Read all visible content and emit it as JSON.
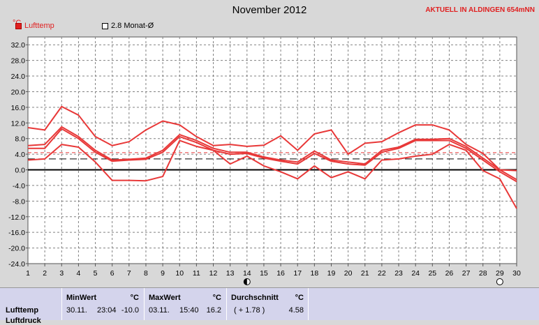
{
  "header": {
    "title": "November 2012",
    "station": "AKTUELL IN ALDINGEN 654mNN",
    "unit": "°C"
  },
  "legend": [
    {
      "label": "Lufttemp",
      "color": "#e02020"
    },
    {
      "label": "2.8 Monat-Ø",
      "color": "#000000"
    }
  ],
  "colors": {
    "series": "#e83838",
    "grid": "#808080",
    "plot_bg": "#ffffff",
    "frame_bg": "#d8d8d8"
  },
  "chart_data": {
    "type": "line",
    "title": "November 2012",
    "ylim": [
      -24,
      34
    ],
    "yticks": [
      32.0,
      28.0,
      24.0,
      20.0,
      16.0,
      12.0,
      8.0,
      4.0,
      0.0,
      -4.0,
      -8.0,
      -12.0,
      -16.0,
      -20.0,
      -24.0
    ],
    "xlim": [
      1,
      30
    ],
    "x": [
      1,
      2,
      3,
      4,
      5,
      6,
      7,
      8,
      9,
      10,
      11,
      12,
      13,
      14,
      15,
      16,
      17,
      18,
      19,
      20,
      21,
      22,
      23,
      24,
      25,
      26,
      27,
      28,
      29,
      30
    ],
    "grid": true,
    "hlines": [
      {
        "value": 0,
        "style": "solid"
      },
      {
        "value": 2.8,
        "style": "dashed"
      },
      {
        "value": 4.4,
        "style": "dashed-red"
      }
    ],
    "series": [
      {
        "values": [
          10.8,
          10.2,
          16.2,
          14.0,
          8.5,
          6.2,
          7.2,
          10.2,
          12.5,
          11.5,
          8.5,
          6.2,
          6.5,
          6.0,
          6.3,
          8.7,
          5.0,
          9.2,
          10.2,
          4.0,
          6.8,
          7.2,
          9.5,
          11.5,
          11.5,
          10.2,
          6.5,
          4.2,
          0.0,
          -0.2
        ]
      },
      {
        "values": [
          6.2,
          6.5,
          11.0,
          8.5,
          5.0,
          2.5,
          2.7,
          3.0,
          5.0,
          9.0,
          7.5,
          5.5,
          4.5,
          4.5,
          3.3,
          2.5,
          2.0,
          4.8,
          2.5,
          2.0,
          1.5,
          5.0,
          5.8,
          7.8,
          7.8,
          8.0,
          6.0,
          3.0,
          0.0,
          -2.5
        ]
      },
      {
        "values": [
          5.5,
          5.5,
          10.5,
          8.0,
          4.5,
          2.2,
          2.5,
          2.7,
          4.5,
          8.5,
          7.0,
          5.0,
          4.0,
          4.2,
          3.0,
          2.2,
          1.5,
          4.2,
          2.2,
          1.5,
          1.2,
          4.5,
          5.5,
          7.5,
          7.5,
          7.5,
          5.5,
          2.5,
          -0.5,
          -3.0
        ]
      },
      {
        "values": [
          2.5,
          2.8,
          6.5,
          5.8,
          2.0,
          -2.7,
          -2.7,
          -2.8,
          -1.7,
          7.5,
          6.0,
          5.0,
          1.5,
          3.5,
          1.0,
          -0.5,
          -2.3,
          1.0,
          -2.0,
          -0.5,
          -2.3,
          2.5,
          2.8,
          3.5,
          4.0,
          6.5,
          5.0,
          -0.2,
          -2.3,
          -9.9
        ]
      }
    ],
    "markers": [
      {
        "x": 14,
        "symbol": "new-moon"
      },
      {
        "x": 29,
        "symbol": "full-moon"
      }
    ]
  },
  "table": {
    "row_label": "Lufttemp",
    "row_label_2": "Luftdruck",
    "columns": [
      {
        "header": "MinWert",
        "unit": "°C",
        "date": "30.11.",
        "time": "23:04",
        "value": "-10.0"
      },
      {
        "header": "MaxWert",
        "unit": "°C",
        "date": "03.11.",
        "time": "15:40",
        "value": "16.2"
      },
      {
        "header": "Durchschnitt",
        "unit": "°C",
        "extra": "( + 1.78 )",
        "value": "4.58"
      }
    ]
  }
}
